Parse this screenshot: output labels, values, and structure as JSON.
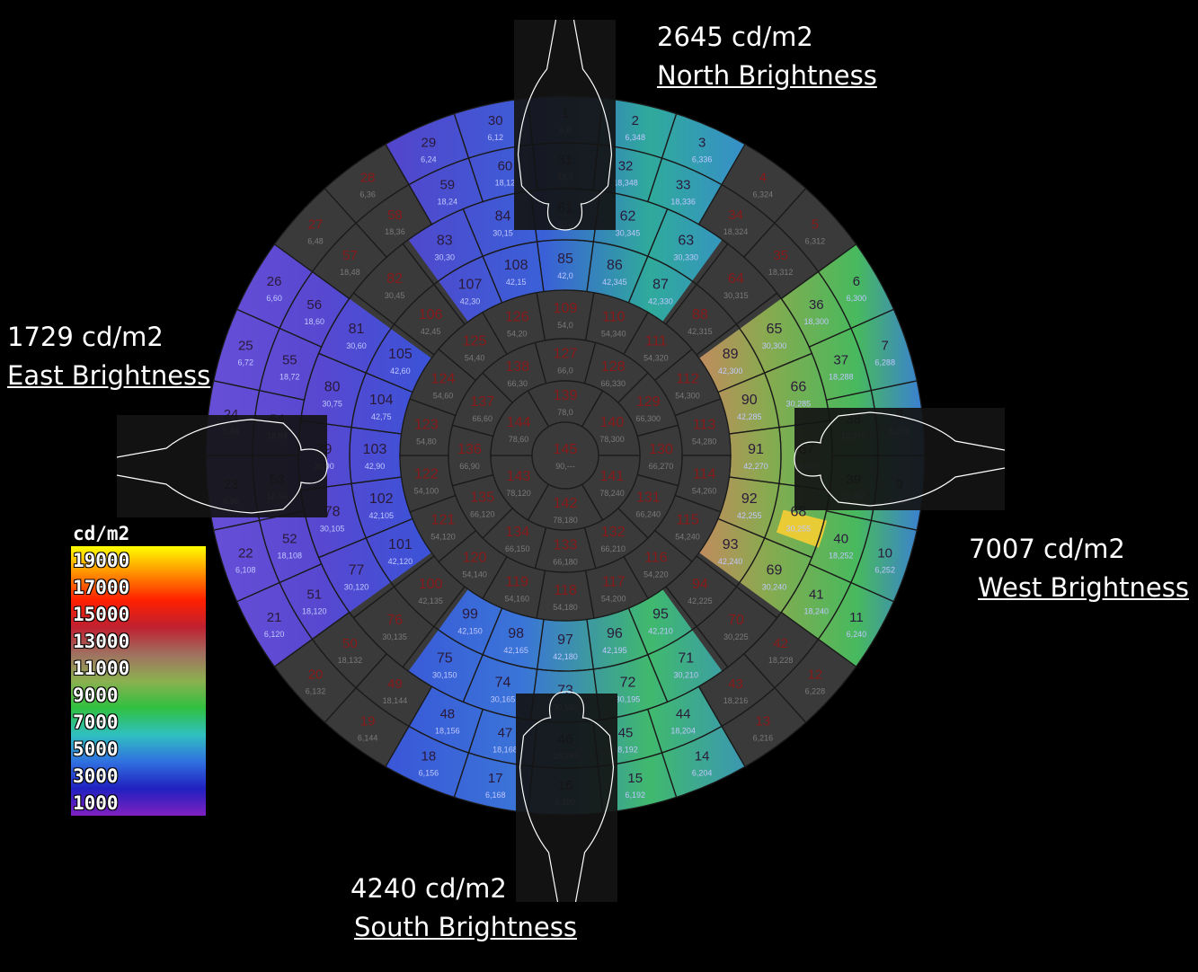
{
  "labels": {
    "north": {
      "value": "2645 cd/m2",
      "title": "North Brightness"
    },
    "east": {
      "value": "1729 cd/m2",
      "title": "East Brightness"
    },
    "west": {
      "value": "7007 cd/m2",
      "title": "West Brightness"
    },
    "south": {
      "value": "4240 cd/m2",
      "title": "South Brightness"
    }
  },
  "colors": {
    "background": "#000000",
    "patch_gray": "#3a3a3a",
    "patch_line": "#1a1a1a",
    "patch_number": "#8a1a1a",
    "patch_coord": "#7a7a7a",
    "outline": "#ffffff"
  },
  "chart_data": {
    "type": "heatmap",
    "title": "",
    "legend": {
      "title": "cd/m2",
      "ticks": [
        19000,
        17000,
        15000,
        13000,
        11000,
        9000,
        7000,
        5000,
        3000,
        1000
      ],
      "range": [
        0,
        20000
      ],
      "colors": [
        "#ffff00",
        "#ff8000",
        "#ff2000",
        "#c02020",
        "#a07060",
        "#8cb050",
        "#30c040",
        "#30c0c0",
        "#3070e0",
        "#2020c0",
        "#8020c0"
      ]
    },
    "rings": [
      {
        "patches": 30,
        "altitude": 6,
        "azimuth_step": 12,
        "first": 1
      },
      {
        "patches": 30,
        "altitude": 18,
        "azimuth_step": 12,
        "first": 31
      },
      {
        "patches": 24,
        "altitude": 30,
        "azimuth_step": 15,
        "first": 61
      },
      {
        "patches": 24,
        "altitude": 42,
        "azimuth_step": 15,
        "first": 85
      },
      {
        "patches": 18,
        "altitude": 54,
        "azimuth_step": 20,
        "first": 109
      },
      {
        "patches": 12,
        "altitude": 66,
        "azimuth_step": 30,
        "first": 127
      },
      {
        "patches": 6,
        "altitude": 78,
        "azimuth_step": 60,
        "first": 139
      },
      {
        "patches": 1,
        "altitude": 90,
        "azimuth_step": 0,
        "first": 145
      }
    ],
    "brightness": [
      {
        "direction": "North",
        "value": 2645,
        "unit": "cd/m2"
      },
      {
        "direction": "East",
        "value": 1729,
        "unit": "cd/m2"
      },
      {
        "direction": "West",
        "value": 7007,
        "unit": "cd/m2"
      },
      {
        "direction": "South",
        "value": 4240,
        "unit": "cd/m2"
      }
    ]
  }
}
